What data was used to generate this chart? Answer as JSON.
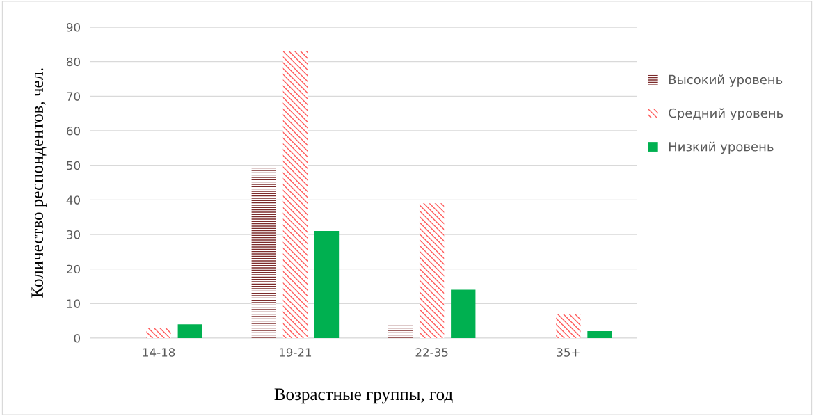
{
  "chart_data": {
    "type": "bar",
    "xlabel": "Возрастные группы, год",
    "ylabel": "Количество респондентов, чел.",
    "categories": [
      "14-18",
      "19-21",
      "22-35",
      "35+"
    ],
    "series": [
      {
        "name": "Высокий уровень",
        "color": "#7b2a2a",
        "values": [
          0,
          50,
          4,
          0
        ]
      },
      {
        "name": "Средний уровень",
        "color": "#ff5b5b",
        "values": [
          3,
          83,
          39,
          7
        ]
      },
      {
        "name": "Низкий уровень",
        "color": "#00b050",
        "values": [
          4,
          31,
          14,
          2
        ]
      }
    ],
    "ylim": [
      0,
      90
    ],
    "yticks": [
      0,
      10,
      20,
      30,
      40,
      50,
      60,
      70,
      80,
      90
    ],
    "grid": "y",
    "legend": "right"
  }
}
